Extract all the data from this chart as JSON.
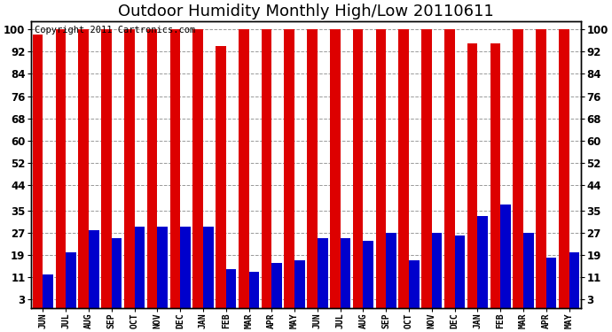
{
  "title": "Outdoor Humidity Monthly High/Low 20110611",
  "copyright_text": "Copyright 2011 Cartronics.com",
  "months": [
    "JUN",
    "JUL",
    "AUG",
    "SEP",
    "OCT",
    "NOV",
    "DEC",
    "JAN",
    "FEB",
    "MAR",
    "APR",
    "MAY",
    "JUN",
    "JUL",
    "AUG",
    "SEP",
    "OCT",
    "NOV",
    "DEC",
    "JAN",
    "FEB",
    "MAR",
    "APR",
    "MAY"
  ],
  "highs": [
    98,
    100,
    100,
    100,
    100,
    100,
    100,
    100,
    94,
    100,
    100,
    100,
    100,
    100,
    100,
    100,
    100,
    100,
    100,
    95,
    95,
    100,
    100,
    100
  ],
  "lows": [
    12,
    20,
    28,
    25,
    29,
    29,
    29,
    29,
    14,
    13,
    16,
    17,
    25,
    25,
    24,
    27,
    17,
    27,
    26,
    33,
    37,
    27,
    18,
    20
  ],
  "bar_color_high": "#dd0000",
  "bar_color_low": "#0000cc",
  "background_color": "#ffffff",
  "plot_bg_color": "#ffffff",
  "yticks": [
    3,
    11,
    19,
    27,
    35,
    44,
    52,
    60,
    68,
    76,
    84,
    92,
    100
  ],
  "ylim": [
    0,
    103
  ],
  "grid_color": "#999999",
  "title_fontsize": 13,
  "copyright_fontsize": 7.5
}
